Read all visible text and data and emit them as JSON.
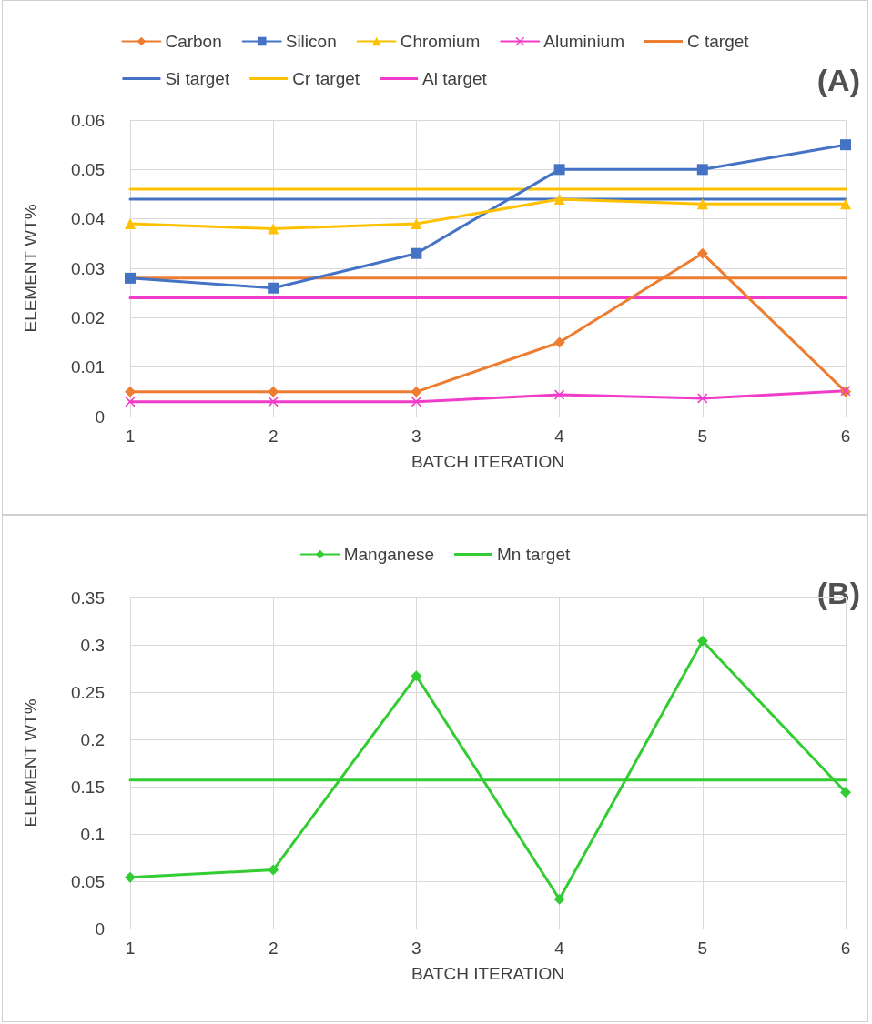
{
  "chart_data": [
    {
      "type": "line",
      "xlabel": "BATCH ITERATION",
      "ylabel": "ELEMENT WT%",
      "annotations": [
        "(A)"
      ],
      "categories": [
        "1",
        "2",
        "3",
        "4",
        "5",
        "6"
      ],
      "ylim": [
        0,
        0.06
      ],
      "yticks": [
        0,
        0.01,
        0.02,
        0.03,
        0.04,
        0.05,
        0.06
      ],
      "grid": true,
      "legend": "top",
      "line_style": "solid",
      "series": [
        {
          "name": "Carbon",
          "color": "#ed7d31",
          "marker": "diamond",
          "values": [
            0.005,
            0.005,
            0.005,
            0.015,
            0.033,
            0.005
          ]
        },
        {
          "name": "Silicon",
          "color": "#4472c4",
          "marker": "square",
          "values": [
            0.028,
            0.026,
            0.033,
            0.05,
            0.05,
            0.055
          ]
        },
        {
          "name": "Chromium",
          "color": "#ffc000",
          "marker": "triangle",
          "values": [
            0.039,
            0.038,
            0.039,
            0.044,
            0.043,
            0.043
          ]
        },
        {
          "name": "Aluminium",
          "color": "#f03cc8",
          "marker": "cross",
          "values": [
            0.003,
            0.003,
            0.003,
            0.0044,
            0.0037,
            0.0052
          ]
        },
        {
          "name": "C target",
          "color": "#ed7d31",
          "marker": "none",
          "values": [
            0.028,
            0.028,
            0.028,
            0.028,
            0.028,
            0.028
          ]
        },
        {
          "name": "Si target",
          "color": "#4472c4",
          "marker": "none",
          "values": [
            0.044,
            0.044,
            0.044,
            0.044,
            0.044,
            0.044
          ]
        },
        {
          "name": "Cr target",
          "color": "#ffc000",
          "marker": "none",
          "values": [
            0.046,
            0.046,
            0.046,
            0.046,
            0.046,
            0.046
          ]
        },
        {
          "name": "Al target",
          "color": "#f03cc8",
          "marker": "none",
          "values": [
            0.024,
            0.024,
            0.024,
            0.024,
            0.024,
            0.024
          ]
        }
      ]
    },
    {
      "type": "line",
      "xlabel": "BATCH ITERATION",
      "ylabel": "ELEMENT WT%",
      "annotations": [
        "(B)"
      ],
      "categories": [
        "1",
        "2",
        "3",
        "4",
        "5",
        "6"
      ],
      "ylim": [
        0,
        0.35
      ],
      "yticks": [
        0,
        0.05,
        0.1,
        0.15,
        0.2,
        0.25,
        0.3,
        0.35
      ],
      "grid": true,
      "legend": "top",
      "line_style": "solid",
      "series": [
        {
          "name": "Manganese",
          "color": "#33cc33",
          "marker": "diamond",
          "values": [
            0.054,
            0.062,
            0.267,
            0.031,
            0.304,
            0.144
          ]
        },
        {
          "name": "Mn target",
          "color": "#33cc33",
          "marker": "none",
          "values": [
            0.157,
            0.157,
            0.157,
            0.157,
            0.157,
            0.157
          ]
        }
      ]
    }
  ]
}
